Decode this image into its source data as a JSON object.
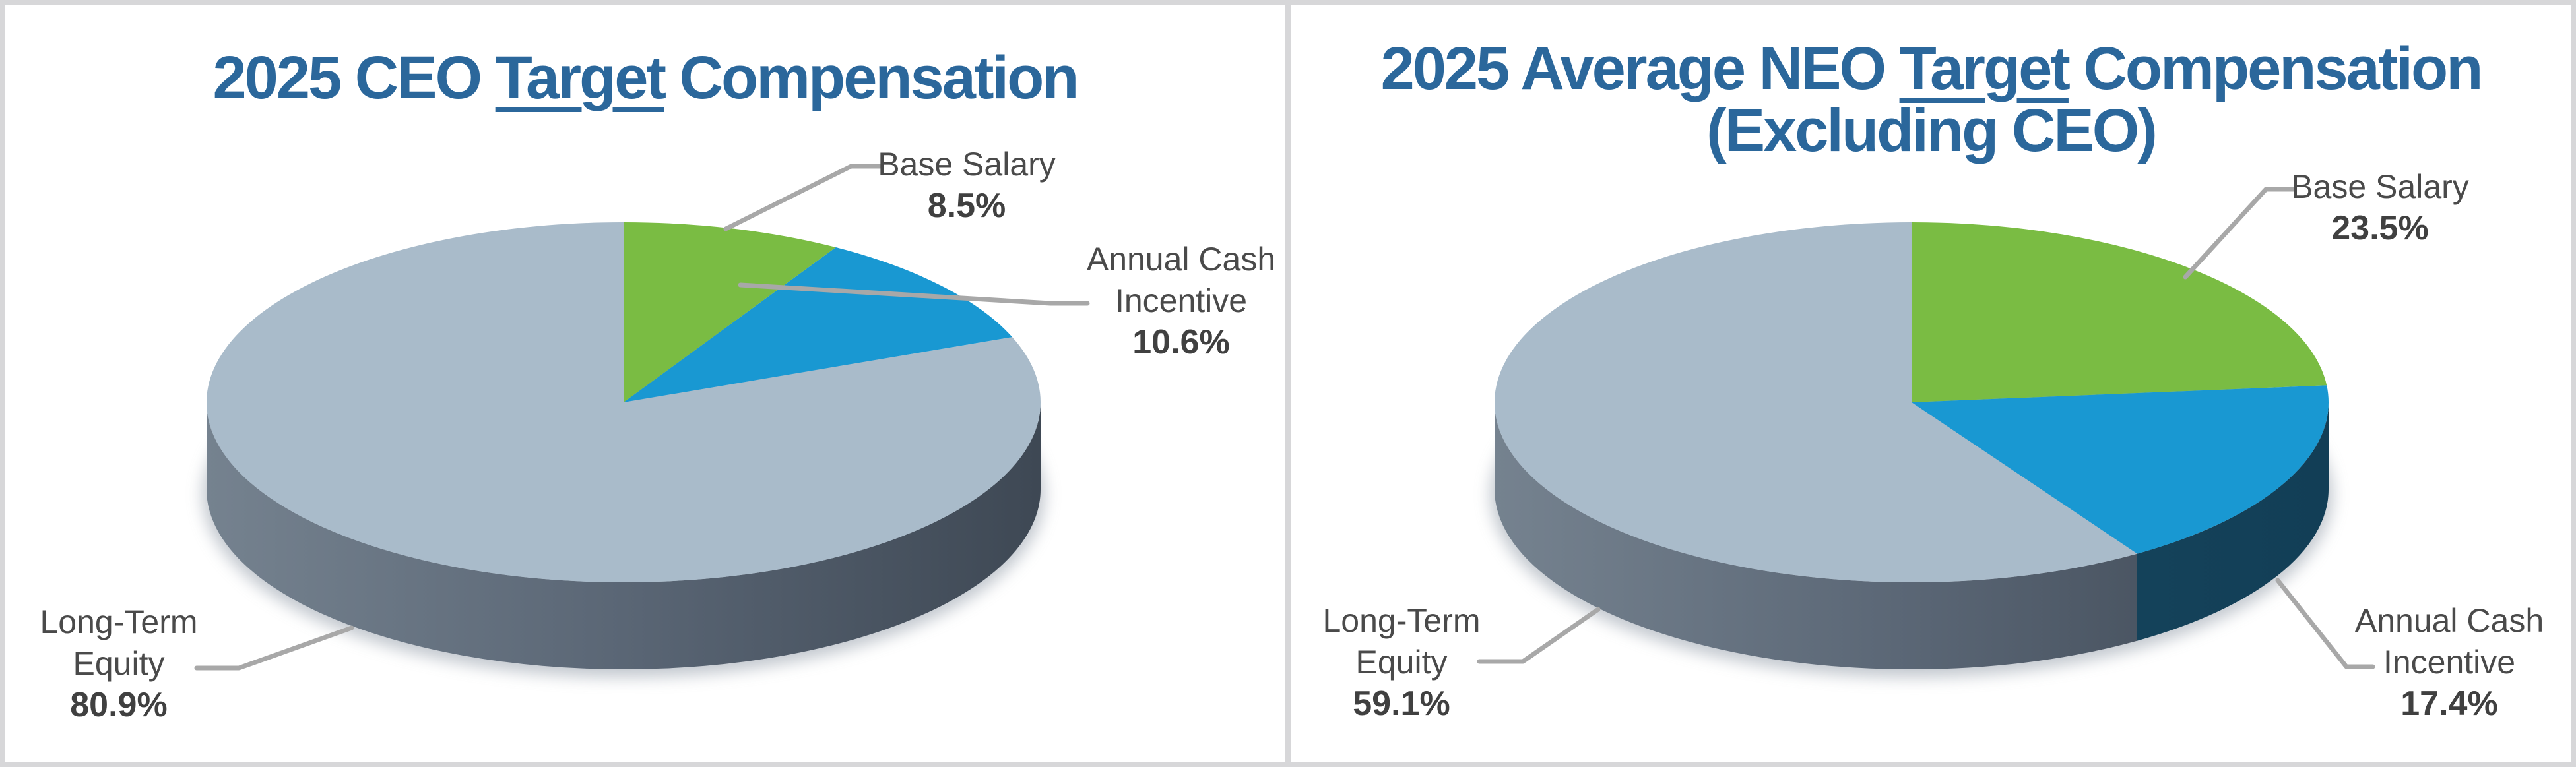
{
  "frame": {
    "border_color": "#D7D7D9",
    "panel_background": "#FFFFFF"
  },
  "palette": {
    "title_color": "#2B679B",
    "label_color": "#4A4A4A",
    "pct_color": "#404040",
    "callout_color": "#A8A8A8",
    "slice_colors": [
      "#7ABC43",
      "#1998D2",
      "#A9BBCA"
    ],
    "side_wall_gray_stops": [
      "#75828F",
      "#5A6675",
      "#3E4854"
    ],
    "side_wall_navy": "#123E56",
    "side_wall_green": "#4C8A22",
    "shadow_color": "#99A2AD"
  },
  "charts": [
    {
      "title": {
        "pre": "2025 CEO ",
        "underlined": "Target",
        "post": " Compensation",
        "line2": ""
      },
      "labels": [
        {
          "lines": [
            "Base Salary"
          ],
          "pct": "8.5%"
        },
        {
          "lines": [
            "Annual Cash",
            "Incentive"
          ],
          "pct": "10.6%"
        },
        {
          "lines": [
            "Long-Term",
            "Equity"
          ],
          "pct": "80.9%"
        }
      ]
    },
    {
      "title": {
        "pre": "2025 Average NEO ",
        "underlined": "Target",
        "post": " Compensation",
        "line2": "(Excluding CEO)"
      },
      "labels": [
        {
          "lines": [
            "Base Salary"
          ],
          "pct": "23.5%"
        },
        {
          "lines": [
            "Annual Cash",
            "Incentive"
          ],
          "pct": "17.4%"
        },
        {
          "lines": [
            "Long-Term",
            "Equity"
          ],
          "pct": "59.1%"
        }
      ]
    }
  ],
  "chart_data": [
    {
      "type": "pie",
      "style": "3d",
      "title": "2025 CEO Target Compensation",
      "categories": [
        "Base Salary",
        "Annual Cash Incentive",
        "Long-Term Equity"
      ],
      "values": [
        8.5,
        10.6,
        80.9
      ],
      "unit": "percent",
      "colors": [
        "#7ABC43",
        "#1998D2",
        "#A9BBCA"
      ],
      "start_angle_deg": 0,
      "direction": "clockwise",
      "legend": "none",
      "data_labels": "category name and percentage outside slices with gray leader lines"
    },
    {
      "type": "pie",
      "style": "3d",
      "title": "2025 Average NEO Target Compensation (Excluding CEO)",
      "categories": [
        "Base Salary",
        "Annual Cash Incentive",
        "Long-Term Equity"
      ],
      "values": [
        23.5,
        17.4,
        59.1
      ],
      "unit": "percent",
      "colors": [
        "#7ABC43",
        "#1998D2",
        "#A9BBCA"
      ],
      "start_angle_deg": 0,
      "direction": "clockwise",
      "legend": "none",
      "data_labels": "category name and percentage outside slices with gray leader lines"
    }
  ]
}
